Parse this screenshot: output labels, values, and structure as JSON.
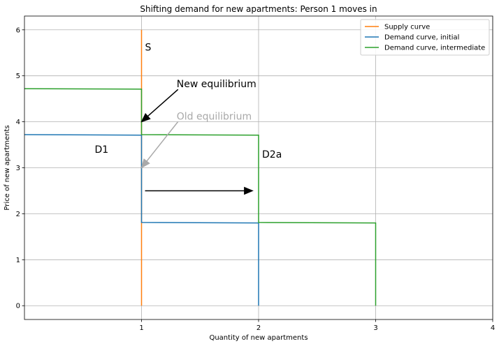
{
  "chart_data": {
    "type": "line",
    "title": "Shifting demand for new apartments: Person 1 moves in",
    "xlabel": "Quantity of new apartments",
    "ylabel": "Price of new apartments",
    "xlim": [
      0,
      4
    ],
    "ylim": [
      -0.3,
      6.3
    ],
    "xticks": [
      1,
      2,
      3,
      4
    ],
    "yticks": [
      0,
      1,
      2,
      3,
      4,
      5,
      6
    ],
    "grid": true,
    "legend_position": "top-right",
    "series": [
      {
        "name": "Supply curve",
        "color": "#ff7f0e",
        "x": [
          1,
          1
        ],
        "y": [
          0,
          6
        ]
      },
      {
        "name": "Demand curve, initial",
        "color": "#1f77b4",
        "x": [
          0,
          1,
          1,
          2,
          2
        ],
        "y": [
          3.72,
          3.71,
          1.81,
          1.8,
          0
        ]
      },
      {
        "name": "Demand curve, intermediate",
        "color": "#2ca02c",
        "x": [
          0,
          1,
          1,
          2,
          2,
          3,
          3
        ],
        "y": [
          4.72,
          4.71,
          3.72,
          3.71,
          1.81,
          1.8,
          0
        ]
      }
    ],
    "annotations": [
      {
        "text": "S",
        "x": 1.03,
        "y": 5.55,
        "color": "#000000"
      },
      {
        "text": "D1",
        "x": 0.6,
        "y": 3.33,
        "color": "#000000"
      },
      {
        "text": "D2a",
        "x": 2.03,
        "y": 3.22,
        "color": "#000000"
      },
      {
        "text": "New equilibrium",
        "x": 1.3,
        "y": 4.75,
        "color": "#000000",
        "arrow_to": [
          1,
          4
        ],
        "arrow_color": "#000000"
      },
      {
        "text": "Old equilibrium",
        "x": 1.3,
        "y": 4.05,
        "color": "#a9a9a9",
        "arrow_to": [
          1,
          3
        ],
        "arrow_color": "#a9a9a9"
      }
    ],
    "shift_arrow": {
      "from": [
        1.03,
        2.5
      ],
      "to": [
        1.95,
        2.5
      ],
      "color": "#000000"
    }
  }
}
